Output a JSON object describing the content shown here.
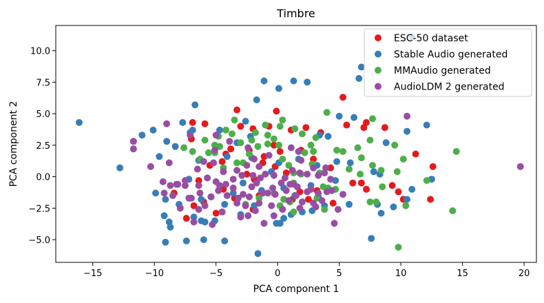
{
  "chart_data": {
    "type": "scatter",
    "title": "Timbre",
    "xlabel": "PCA component 1",
    "ylabel": "PCA component 2",
    "xlim": [
      -18,
      21
    ],
    "ylim": [
      -6.8,
      12.0
    ],
    "xticks": [
      -15,
      -10,
      -5,
      0,
      5,
      10,
      15,
      20
    ],
    "yticks": [
      -5.0,
      -2.5,
      0.0,
      2.5,
      5.0,
      7.5,
      10.0
    ],
    "xtick_labels": [
      "−15",
      "−10",
      "−5",
      "0",
      "5",
      "10",
      "15",
      "20"
    ],
    "ytick_labels": [
      "−5.0",
      "−2.5",
      "0.0",
      "2.5",
      "5.0",
      "7.5",
      "10.0"
    ],
    "grid": false,
    "legend_position": "top-right",
    "series": [
      {
        "name": "ESC-50 dataset",
        "color": "#e41a1c",
        "points": [
          [
            -6.9,
            4.3
          ],
          [
            -5.9,
            4.2
          ],
          [
            -3.3,
            5.3
          ],
          [
            -3,
            4
          ],
          [
            -2,
            3.8
          ],
          [
            -0.7,
            4
          ],
          [
            -0.1,
            5.2
          ],
          [
            1.1,
            3.7
          ],
          [
            2.3,
            3.9
          ],
          [
            3.5,
            3.5
          ],
          [
            5.3,
            6.3
          ],
          [
            5.6,
            4.1
          ],
          [
            7,
            3.9
          ],
          [
            7.2,
            4.3
          ],
          [
            8.7,
            3.9
          ],
          [
            11.2,
            1.8
          ],
          [
            12.6,
            0.8
          ],
          [
            12.4,
            -1.8
          ],
          [
            10.2,
            -1.8
          ],
          [
            9.3,
            -0.7
          ],
          [
            9.8,
            -1.2
          ],
          [
            7.2,
            -1
          ],
          [
            6.8,
            -0.5
          ],
          [
            6.1,
            -0.5
          ],
          [
            4.5,
            -2.1
          ],
          [
            3.2,
            -1.1
          ],
          [
            2.5,
            -1.8
          ],
          [
            1.8,
            -1.2
          ],
          [
            0.7,
            0.3
          ],
          [
            -0.2,
            0.8
          ],
          [
            -1.1,
            1.6
          ],
          [
            -1.9,
            -0.2
          ],
          [
            -2.5,
            0.2
          ],
          [
            -3.5,
            -1.7
          ],
          [
            -4.4,
            -1
          ],
          [
            -5,
            -2.9
          ],
          [
            -6,
            -2
          ],
          [
            -6.8,
            -2.3
          ],
          [
            -7.4,
            -3.3
          ],
          [
            -8.4,
            -1.3
          ],
          [
            -6.4,
            -0.3
          ],
          [
            -5.5,
            0.9
          ],
          [
            -4.5,
            1.2
          ],
          [
            -3.8,
            2.2
          ],
          [
            -2.3,
            2.1
          ],
          [
            -1.2,
            1.1
          ],
          [
            0.2,
            2
          ],
          [
            1.9,
            2.1
          ],
          [
            2.9,
            1.4
          ],
          [
            4.3,
            0.7
          ],
          [
            -7,
            3
          ],
          [
            -4.2,
            1.8
          ],
          [
            -0.3,
            2.5
          ],
          [
            -1.5,
            -1.5
          ],
          [
            1.2,
            -1.8
          ],
          [
            -2,
            -2.6
          ]
        ]
      },
      {
        "name": "Stable Audio generated",
        "color": "#377eb8",
        "points": [
          [
            -16.1,
            4.3
          ],
          [
            -12.8,
            0.7
          ],
          [
            -11.7,
            2.8
          ],
          [
            -11,
            3.3
          ],
          [
            -10.1,
            3.7
          ],
          [
            -9.6,
            1.6
          ],
          [
            -9.9,
            -1.3
          ],
          [
            -9.1,
            -1.8
          ],
          [
            -9.2,
            -3.1
          ],
          [
            -8.8,
            -3.6
          ],
          [
            -8.7,
            -4
          ],
          [
            -9.1,
            -5.2
          ],
          [
            -7.4,
            -5.1
          ],
          [
            -6.8,
            -3.2
          ],
          [
            -6.2,
            -3.5
          ],
          [
            -5.9,
            -3.6
          ],
          [
            -6,
            -5
          ],
          [
            -5.1,
            -3.5
          ],
          [
            -4.3,
            -2.2
          ],
          [
            -4.3,
            -5.1
          ],
          [
            -3,
            -3
          ],
          [
            -1.6,
            -6.1
          ],
          [
            -0.1,
            -3.7
          ],
          [
            0.2,
            -3.7
          ],
          [
            0.5,
            -3.3
          ],
          [
            1.1,
            -3
          ],
          [
            2,
            -2.8
          ],
          [
            2.8,
            -2.7
          ],
          [
            3.8,
            -2.3
          ],
          [
            5.8,
            -2.2
          ],
          [
            7.6,
            -4.9
          ],
          [
            8.1,
            -2.2
          ],
          [
            8.4,
            -2.9
          ],
          [
            9.4,
            -2.4
          ],
          [
            10.5,
            -1.8
          ],
          [
            10.9,
            -1
          ],
          [
            12.5,
            -0.2
          ],
          [
            12.1,
            4.1
          ],
          [
            10.5,
            3.6
          ],
          [
            10.9,
            11.1
          ],
          [
            8.8,
            2.7
          ],
          [
            6.2,
            4.7
          ],
          [
            6.6,
            7.8
          ],
          [
            6.8,
            8.7
          ],
          [
            5,
            4.8
          ],
          [
            4.1,
            3.2
          ],
          [
            3.4,
            3.3
          ],
          [
            2.4,
            7.5
          ],
          [
            1.3,
            7.6
          ],
          [
            0.1,
            7
          ],
          [
            -1.1,
            7.6
          ],
          [
            -1.7,
            6.1
          ],
          [
            -2.6,
            4.4
          ],
          [
            -2.2,
            3.2
          ],
          [
            -3.3,
            2.7
          ],
          [
            -4.7,
            3.7
          ],
          [
            -6.7,
            5.7
          ],
          [
            -6.9,
            3.7
          ],
          [
            -7.1,
            3.5
          ],
          [
            -7.7,
            4.3
          ],
          [
            -8.3,
            2.4
          ],
          [
            -9,
            2.8
          ],
          [
            -6.4,
            1.3
          ],
          [
            -4.1,
            1.6
          ],
          [
            -2.1,
            1.5
          ],
          [
            0.1,
            1.1
          ],
          [
            1.7,
            1.4
          ],
          [
            3.2,
            0.9
          ],
          [
            4.8,
            1.2
          ],
          [
            5.9,
            1.1
          ],
          [
            7.8,
            0.4
          ],
          [
            8.3,
            0.2
          ],
          [
            -7.2,
            -0.2
          ],
          [
            -5.4,
            -1.6
          ],
          [
            -3.6,
            -1.3
          ],
          [
            -1.3,
            -1.1
          ],
          [
            0.5,
            -0.9
          ],
          [
            2.7,
            -0.7
          ],
          [
            4.7,
            -0.3
          ],
          [
            -2.8,
            -0.5
          ],
          [
            -0.5,
            0.4
          ],
          [
            1.4,
            -1.5
          ],
          [
            -1.9,
            -2.3
          ],
          [
            -8,
            -2.2
          ],
          [
            -6.2,
            -1.8
          ],
          [
            3.3,
            -1.6
          ]
        ]
      },
      {
        "name": "MMAudio generated",
        "color": "#4daf4a",
        "points": [
          [
            14.5,
            2
          ],
          [
            14.2,
            -2.7
          ],
          [
            9.8,
            -5.6
          ],
          [
            10.2,
            1.4
          ],
          [
            9.7,
            0.4
          ],
          [
            9.5,
            2.5
          ],
          [
            8.4,
            0.5
          ],
          [
            7.7,
            0.9
          ],
          [
            8.5,
            -0.8
          ],
          [
            8,
            -2
          ],
          [
            10.4,
            -2.3
          ],
          [
            12.1,
            -0.3
          ],
          [
            7.5,
            -2
          ],
          [
            6.8,
            1.5
          ],
          [
            7.5,
            2.9
          ],
          [
            7.7,
            4.6
          ],
          [
            6.5,
            2.3
          ],
          [
            4.7,
            -1
          ],
          [
            4.1,
            -0.9
          ],
          [
            3.7,
            -0.8
          ],
          [
            3.8,
            -2.6
          ],
          [
            3.2,
            -1.7
          ],
          [
            1.3,
            -2.8
          ],
          [
            1,
            -2
          ],
          [
            0.5,
            -1.8
          ],
          [
            0.2,
            -2.3
          ],
          [
            -0.3,
            -1.3
          ],
          [
            -1.5,
            -1.7
          ],
          [
            -2.6,
            -2.2
          ],
          [
            4,
            5.1
          ],
          [
            3.1,
            3.1
          ],
          [
            2.7,
            2.5
          ],
          [
            2.9,
            2
          ],
          [
            2.2,
            1.9
          ],
          [
            2.8,
            1
          ],
          [
            1.9,
            0.2
          ],
          [
            1.3,
            0.3
          ],
          [
            0.9,
            0.9
          ],
          [
            0.4,
            1.4
          ],
          [
            0.1,
            2.5
          ],
          [
            0.2,
            4
          ],
          [
            -0.3,
            3
          ],
          [
            -0.8,
            2.6
          ],
          [
            -0.8,
            3.3
          ],
          [
            -1,
            4.1
          ],
          [
            -1.6,
            2.4
          ],
          [
            -1.8,
            3.5
          ],
          [
            -2.1,
            2.9
          ],
          [
            -2.3,
            1.8
          ],
          [
            -3,
            2.7
          ],
          [
            -3.3,
            1.1
          ],
          [
            -3.7,
            3.4
          ],
          [
            -4.2,
            3.7
          ],
          [
            -4.7,
            2.4
          ],
          [
            -4.8,
            3.2
          ],
          [
            -5.1,
            2.5
          ],
          [
            -5.1,
            1.9
          ],
          [
            -5.6,
            1.9
          ],
          [
            -5.9,
            2.9
          ],
          [
            -6.3,
            1.4
          ],
          [
            -6.9,
            2
          ],
          [
            -7.6,
            2.3
          ],
          [
            0.4,
            4.5
          ],
          [
            1.4,
            3.8
          ],
          [
            2,
            3.4
          ],
          [
            4.8,
            2.1
          ],
          [
            5.3,
            2
          ],
          [
            5.8,
            0.6
          ],
          [
            6.7,
            0.2
          ],
          [
            3.4,
            0.3
          ],
          [
            -3.5,
            4.5
          ],
          [
            -2.8,
            1.1
          ],
          [
            -4.4,
            0.7
          ],
          [
            1.3,
            -0.5
          ]
        ]
      },
      {
        "name": "AudioLDM 2 generated",
        "color": "#984ea3",
        "points": [
          [
            -11.7,
            2.8
          ],
          [
            -11.7,
            2.2
          ],
          [
            -9,
            4.2
          ],
          [
            -9.3,
            -0.4
          ],
          [
            -8.7,
            -0.7
          ],
          [
            -8.5,
            -1.5
          ],
          [
            -8.2,
            -0.6
          ],
          [
            -7.5,
            -0.7
          ],
          [
            -7.9,
            -2.5
          ],
          [
            -7.2,
            -1.7
          ],
          [
            -6.3,
            -1.3
          ],
          [
            -6.4,
            -0.7
          ],
          [
            -7.5,
            -0.3
          ],
          [
            -5.9,
            -2.3
          ],
          [
            -5.4,
            -1.6
          ],
          [
            -5,
            -0.4
          ],
          [
            -4.7,
            -0.7
          ],
          [
            -4.2,
            -0.6
          ],
          [
            -3.6,
            -0.9
          ],
          [
            -3.2,
            -1.7
          ],
          [
            -2.8,
            -1.4
          ],
          [
            -2.6,
            -2.3
          ],
          [
            -2.3,
            -1.6
          ],
          [
            -2.1,
            -0.8
          ],
          [
            -1.7,
            -0.5
          ],
          [
            -1.5,
            -2.1
          ],
          [
            -1.2,
            -1.3
          ],
          [
            -0.8,
            -1.3
          ],
          [
            -0.4,
            -0.9
          ],
          [
            -0.2,
            -1.4
          ],
          [
            0.3,
            -0.5
          ],
          [
            0.7,
            -1.1
          ],
          [
            1,
            -0.6
          ],
          [
            1.3,
            -0.6
          ],
          [
            1.5,
            -1.5
          ],
          [
            1.8,
            -2.5
          ],
          [
            2,
            -2
          ],
          [
            2.4,
            -1.2
          ],
          [
            2.9,
            -2.1
          ],
          [
            3.3,
            -1.3
          ],
          [
            3.6,
            -1.9
          ],
          [
            4,
            -1.2
          ],
          [
            4.4,
            -1.1
          ],
          [
            4.6,
            -3.7
          ],
          [
            4.9,
            -2.6
          ],
          [
            5.3,
            -1.4
          ],
          [
            -1.1,
            -3.7
          ],
          [
            -0.3,
            -3.1
          ],
          [
            -2.4,
            -3.1
          ],
          [
            -3.3,
            -2.1
          ],
          [
            -4.5,
            -2.8
          ],
          [
            -5.3,
            -3.8
          ],
          [
            -6.8,
            -3.6
          ],
          [
            -7,
            -1.7
          ],
          [
            -9.2,
            -1.3
          ],
          [
            -10.3,
            0.8
          ],
          [
            -6.5,
            0.6
          ],
          [
            -5.2,
            1.1
          ],
          [
            -4.4,
            0.4
          ],
          [
            -3.3,
            0.5
          ],
          [
            -2.5,
            0.9
          ],
          [
            -1.9,
            1.4
          ],
          [
            -1.5,
            0.8
          ],
          [
            -1,
            0.2
          ],
          [
            -0.3,
            0.1
          ],
          [
            0.6,
            -0.1
          ],
          [
            1.2,
            0.5
          ],
          [
            1.8,
            0.3
          ],
          [
            2.4,
            0.2
          ],
          [
            2.9,
            0.7
          ],
          [
            3.3,
            0.1
          ],
          [
            3.9,
            0.7
          ],
          [
            4.3,
            -0.2
          ],
          [
            1.7,
            2
          ],
          [
            1.1,
            2.3
          ],
          [
            -0.7,
            1.7
          ],
          [
            -2.4,
            2.3
          ],
          [
            -3.9,
            2.8
          ],
          [
            -5.1,
            2.1
          ],
          [
            -5,
            3.3
          ],
          [
            -7.1,
            3.3
          ],
          [
            -8.8,
            1.1
          ],
          [
            -6.4,
            -2.6
          ],
          [
            -4.8,
            -1.1
          ],
          [
            -2,
            0.1
          ],
          [
            1.9,
            1.3
          ],
          [
            3.8,
            0.3
          ],
          [
            0.4,
            -2.6
          ],
          [
            -1.8,
            -2.7
          ],
          [
            3.1,
            -2.4
          ],
          [
            10.5,
            4.8
          ],
          [
            19.7,
            0.8
          ],
          [
            -3.6,
            -0.2
          ],
          [
            -1.4,
            -0.1
          ],
          [
            0.9,
            -1.9
          ],
          [
            2.7,
            -1
          ],
          [
            -4.1,
            -1.5
          ],
          [
            -3,
            -3.2
          ],
          [
            -8.1,
            -0.6
          ],
          [
            -6,
            1.2
          ],
          [
            -5.7,
            -0.1
          ],
          [
            -2.9,
            0.1
          ],
          [
            -0.5,
            -2.3
          ],
          [
            1.6,
            -0.8
          ]
        ]
      }
    ]
  }
}
